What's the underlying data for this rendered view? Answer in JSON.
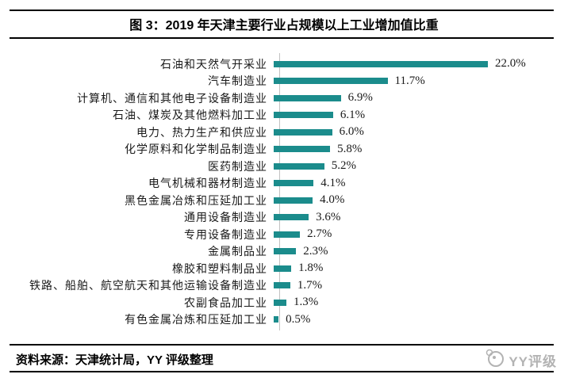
{
  "header": {
    "title": "图 3：2019 年天津主要行业占规模以上工业增加值比重"
  },
  "chart_data": {
    "type": "bar",
    "orientation": "horizontal",
    "title": "2019 年天津主要行业占规模以上工业增加值比重",
    "xlabel": "",
    "ylabel": "",
    "unit": "%",
    "xlim": [
      0,
      24
    ],
    "grid": false,
    "legend": "none",
    "categories": [
      "石油和天然气开采业",
      "汽车制造业",
      "计算机、通信和其他电子设备制造业",
      "石油、煤炭及其他燃料加工业",
      "电力、热力生产和供应业",
      "化学原料和化学制品制造业",
      "医药制造业",
      "电气机械和器材制造业",
      "黑色金属冶炼和压延加工业",
      "通用设备制造业",
      "专用设备制造业",
      "金属制品业",
      "橡胶和塑料制品业",
      "铁路、船舶、航空航天和其他运输设备制造业",
      "农副食品加工业",
      "有色金属冶炼和压延加工业"
    ],
    "values": [
      22.0,
      11.7,
      6.9,
      6.1,
      6.0,
      5.8,
      5.2,
      4.1,
      4.0,
      3.6,
      2.7,
      2.3,
      1.8,
      1.7,
      1.3,
      0.5
    ],
    "value_labels": [
      "22.0%",
      "11.7%",
      "6.9%",
      "6.1%",
      "6.0%",
      "5.8%",
      "5.2%",
      "4.1%",
      "4.0%",
      "3.6%",
      "2.7%",
      "2.3%",
      "1.8%",
      "1.7%",
      "1.3%",
      "0.5%"
    ]
  },
  "footer": {
    "source": "资料来源：天津统计局，YY 评级整理",
    "logo_text": "YY评级",
    "logo_icon": "swirl-circle-icon"
  },
  "colors": {
    "bar": "#1B8C8C",
    "axis_line": "#C2C2C2",
    "border": "#000000",
    "logo": "#ABABAB",
    "text": "#1A1A1A"
  }
}
